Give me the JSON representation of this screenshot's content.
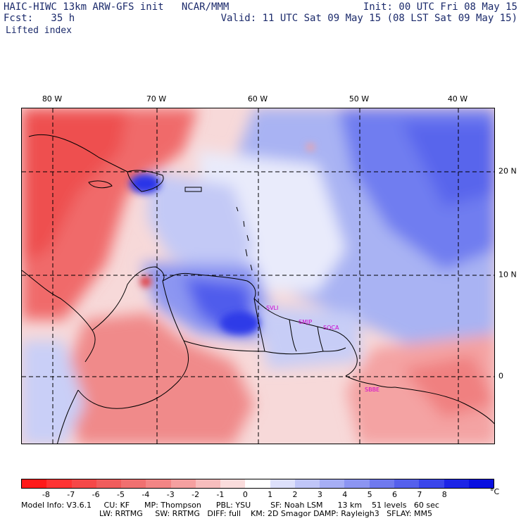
{
  "header": {
    "title": "HAIC-HIWC 13km ARW-GFS init   NCAR/MMM",
    "fcst": "Fcst:   35 h",
    "field": "Lifted index",
    "init": "Init: 00 UTC Fri 08 May 15",
    "valid": "Valid: 11 UTC Sat 09 May 15 (08 LST Sat 09 May 15)"
  },
  "map": {
    "lon_labels": [
      "80 W",
      "70 W",
      "60 W",
      "50 W",
      "40 W"
    ],
    "lat_labels": [
      "20 N",
      "10 N",
      "0"
    ],
    "stations": [
      "SVLI",
      "SMJP",
      "SOCA",
      "SBBE"
    ]
  },
  "colorbar": {
    "labels": [
      "-8",
      "-7",
      "-6",
      "-5",
      "-4",
      "-3",
      "-2",
      "-1",
      "0",
      "1",
      "2",
      "3",
      "4",
      "5",
      "6",
      "7",
      "8"
    ],
    "unit": "°C",
    "colors": [
      "#ff1a1a",
      "#ff3333",
      "#f54848",
      "#f05c5c",
      "#f07070",
      "#f38585",
      "#f5a0a0",
      "#f7bdbd",
      "#fadcdc",
      "#ffffff",
      "#dde0fb",
      "#c0c6f8",
      "#a6aef5",
      "#8c95f2",
      "#6f79ee",
      "#5560ec",
      "#3a45ea",
      "#1c24e6",
      "#0a10e0"
    ]
  },
  "footer": {
    "line1": "Model Info: V3.6.1     CU: KF      MP: Thompson      PBL: YSU        SF: Noah LSM      13 km    51 levels   60 sec",
    "line2": "LW: RRTMG     SW: RRTMG   DIFF: full    KM: 2D Smagor DAMP: Rayleigh3   SFLAY: MM5"
  }
}
